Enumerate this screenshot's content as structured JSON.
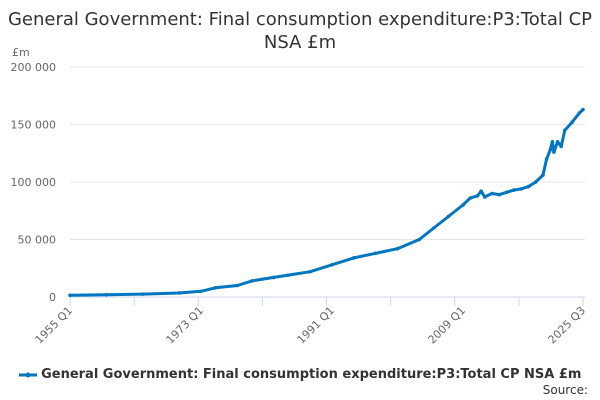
{
  "chart_data": {
    "type": "line",
    "title": "General Government: Final consumption expenditure:P3:Total CP NSA £m",
    "ylabel": "£m",
    "xlabel": "",
    "ylim": [
      0,
      200000
    ],
    "xlim": [
      1955.0,
      2025.5
    ],
    "y_ticks": [
      0,
      50000,
      100000,
      150000,
      200000
    ],
    "y_tick_labels": [
      "0",
      "50 000",
      "100 000",
      "150 000",
      "200 000"
    ],
    "x_tick_labels": [
      {
        "label": "1955 Q1",
        "x": 1955.0
      },
      {
        "label": "1973 Q1",
        "x": 1973.0
      },
      {
        "label": "1991 Q1",
        "x": 1991.0
      },
      {
        "label": "2009 Q1",
        "x": 2009.0
      },
      {
        "label": "2025 Q3",
        "x": 2025.5
      }
    ],
    "grid": true,
    "legend_position": "bottom",
    "series": [
      {
        "name": "General Government: Final consumption expenditure:P3:Total CP NSA £m",
        "color": "#0077c0",
        "x": [
          1955,
          1960,
          1965,
          1970,
          1973,
          1975,
          1978,
          1980,
          1983,
          1985,
          1988,
          1991,
          1994,
          1997,
          2000,
          2003,
          2005,
          2007,
          2009,
          2010,
          2011,
          2011.5,
          2012,
          2013,
          2014,
          2015,
          2016,
          2017,
          2018,
          2019,
          2020,
          2020.5,
          2021,
          2021.3,
          2021.5,
          2022,
          2022.5,
          2023,
          2024,
          2025,
          2025.5
        ],
        "y": [
          1500,
          2000,
          2500,
          3500,
          5000,
          8000,
          10000,
          14000,
          17000,
          19000,
          22000,
          28000,
          34000,
          38000,
          42000,
          50000,
          60000,
          70000,
          80000,
          86000,
          88000,
          92000,
          87000,
          90000,
          89000,
          91000,
          93000,
          94000,
          96000,
          100000,
          106000,
          120000,
          128000,
          135000,
          126000,
          135000,
          131000,
          145000,
          152000,
          160000,
          163000
        ]
      }
    ]
  },
  "source_label": "Source:"
}
